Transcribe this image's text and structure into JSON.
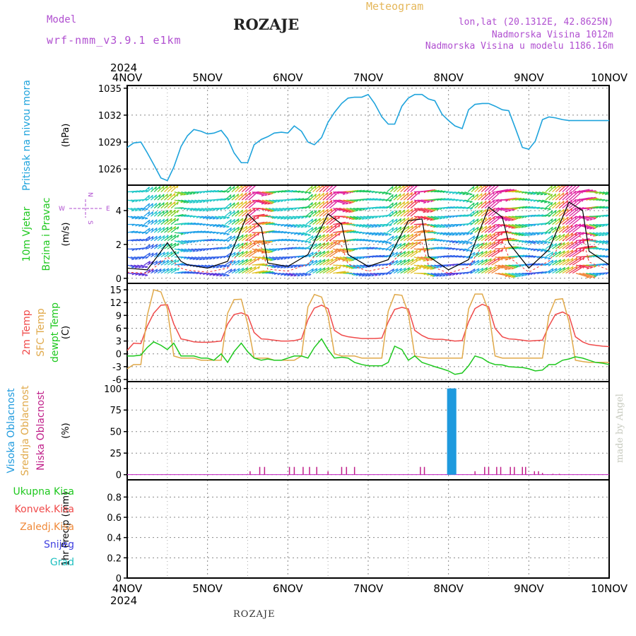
{
  "header": {
    "model_label": "Model",
    "model_name": "wrf-nmm_v3.9.1 e1km",
    "station": "ROZAJE",
    "meteogram_label": "Meteogram",
    "lonlat": "lon,lat (20.1312E, 42.8625N)",
    "elevation": "Nadmorska Visina 1012m",
    "model_elevation": "Nadmorska Visina u modelu 1186.16m"
  },
  "footer": {
    "station": "ROZAJE",
    "credit": "made by Angel"
  },
  "colors": {
    "pressure": "#1ea3dc",
    "temp2m": "#f04a4a",
    "sfc_temp": "#e0a94a",
    "dewpoint": "#1ec81e",
    "high_cloud": "#1e9ade",
    "mid_cloud": "#e0a94a",
    "low_cloud": "#c0208a",
    "total_precip": "#1ec81e",
    "conv_precip": "#f04a4a",
    "freezing_precip": "#f08a3a",
    "snow": "#4040e0",
    "hail": "#20c0c0"
  },
  "chart_data": [
    {
      "type": "line",
      "panel": "pressure",
      "time_labels": [
        "4NOV",
        "5NOV",
        "6NOV",
        "7NOV",
        "8NOV",
        "9NOV",
        "10NOV"
      ],
      "year_label": "2024",
      "ylabel": "(hPa)",
      "side_labels": [
        "Pritisak na nivou mora"
      ],
      "yticks": [
        1026,
        1029,
        1032,
        1035
      ],
      "ylim": [
        1024.2,
        1035.3
      ],
      "series": [
        {
          "color_key": "pressure",
          "x": [
            0,
            0.08,
            0.17,
            0.25,
            0.33,
            0.42,
            0.5,
            0.58,
            0.67,
            0.75,
            0.83,
            0.92,
            1.0,
            1.08,
            1.17,
            1.25,
            1.33,
            1.42,
            1.5,
            1.58,
            1.67,
            1.75,
            1.83,
            1.92,
            2.0,
            2.08,
            2.17,
            2.25,
            2.33,
            2.42,
            2.5,
            2.58,
            2.67,
            2.75,
            2.83,
            2.92,
            3.0,
            3.08,
            3.17,
            3.25,
            3.33,
            3.42,
            3.5,
            3.58,
            3.67,
            3.75,
            3.83,
            3.92,
            4.0,
            4.08,
            4.17,
            4.25,
            4.33,
            4.42,
            4.5,
            4.58,
            4.67,
            4.75,
            4.83,
            4.92,
            5.0,
            5.08,
            5.17,
            5.25,
            5.33,
            5.42,
            5.5,
            5.58,
            5.67,
            5.75,
            5.83,
            5.92,
            6.0
          ],
          "y": [
            1028.4,
            1028.9,
            1029.0,
            1027.8,
            1026.5,
            1025.0,
            1024.7,
            1026.2,
            1028.5,
            1029.7,
            1030.4,
            1030.2,
            1029.9,
            1030.0,
            1030.3,
            1029.4,
            1027.8,
            1026.7,
            1026.7,
            1028.7,
            1029.3,
            1029.6,
            1030.0,
            1030.1,
            1030.0,
            1030.8,
            1030.2,
            1029.0,
            1028.7,
            1029.5,
            1031.2,
            1032.3,
            1033.3,
            1033.9,
            1034.0,
            1034.0,
            1034.3,
            1033.3,
            1031.8,
            1031.0,
            1031.0,
            1033.0,
            1033.9,
            1034.3,
            1034.3,
            1033.8,
            1033.6,
            1032.1,
            1031.4,
            1030.8,
            1030.5,
            1032.6,
            1033.2,
            1033.3,
            1033.3,
            1033.0,
            1032.6,
            1032.5,
            1030.6,
            1028.4,
            1028.2,
            1029.1,
            1031.5,
            1031.8,
            1031.7,
            1031.5,
            1031.4,
            1031.4,
            1031.4,
            1031.4,
            1031.4,
            1031.4,
            1031.4
          ]
        }
      ]
    },
    {
      "type": "line",
      "panel": "wind",
      "ylabel": "(m/s)",
      "side_labels": [
        "10m Vjetar",
        "Brzina i Pravac"
      ],
      "compass": [
        "N",
        "W",
        "E",
        "S"
      ],
      "yticks": [
        0,
        2,
        4
      ],
      "ylim": [
        -0.3,
        5.5
      ],
      "series": [
        {
          "name": "wind_speed",
          "color_key": "line_black",
          "x": [
            0,
            0.25,
            0.5,
            0.67,
            0.75,
            1.0,
            1.25,
            1.5,
            1.67,
            1.75,
            2.0,
            2.25,
            2.5,
            2.67,
            2.75,
            3.0,
            3.25,
            3.5,
            3.67,
            3.75,
            4.0,
            4.25,
            4.5,
            4.67,
            4.75,
            5.0,
            5.25,
            5.5,
            5.67,
            5.75,
            6.0
          ],
          "y": [
            0.6,
            0.5,
            2.1,
            1.0,
            0.8,
            0.6,
            1.0,
            3.8,
            3.0,
            0.9,
            0.7,
            1.4,
            3.8,
            3.2,
            1.4,
            0.7,
            1.1,
            3.4,
            3.5,
            1.3,
            0.5,
            1.1,
            4.2,
            3.6,
            2.1,
            0.6,
            1.7,
            4.5,
            4.0,
            1.6,
            0.8
          ]
        }
      ]
    },
    {
      "type": "line",
      "panel": "temperature",
      "ylabel": "(C)",
      "side_labels": [
        "2m Temp",
        "SFC Temp",
        "dewpt Temp"
      ],
      "yticks": [
        -6,
        -3,
        0,
        3,
        6,
        9,
        12,
        15
      ],
      "ylim": [
        -6.5,
        16.5
      ],
      "x": [
        0,
        0.08,
        0.17,
        0.25,
        0.33,
        0.42,
        0.5,
        0.58,
        0.67,
        0.75,
        0.83,
        0.92,
        1.0,
        1.08,
        1.17,
        1.25,
        1.33,
        1.42,
        1.5,
        1.58,
        1.67,
        1.75,
        1.83,
        1.92,
        2.0,
        2.08,
        2.17,
        2.25,
        2.33,
        2.42,
        2.5,
        2.58,
        2.67,
        2.75,
        2.83,
        2.92,
        3.0,
        3.08,
        3.17,
        3.25,
        3.33,
        3.42,
        3.5,
        3.58,
        3.67,
        3.75,
        3.83,
        3.92,
        4.0,
        4.08,
        4.17,
        4.25,
        4.33,
        4.42,
        4.5,
        4.58,
        4.67,
        4.75,
        4.83,
        4.92,
        5.0,
        5.08,
        5.17,
        5.25,
        5.33,
        5.42,
        5.5,
        5.58,
        5.67,
        5.75,
        5.83,
        5.92,
        6.0
      ],
      "series": [
        {
          "name": "2m",
          "color_key": "temp2m",
          "y": [
            0.8,
            2.5,
            2.4,
            6.5,
            9.5,
            11.4,
            11.5,
            7.0,
            3.5,
            3.2,
            2.8,
            2.7,
            2.7,
            2.8,
            3.0,
            7.0,
            9.2,
            9.6,
            9.0,
            5.0,
            3.5,
            3.4,
            3.2,
            3.0,
            3.0,
            3.1,
            3.5,
            8.0,
            10.7,
            11.4,
            10.6,
            5.5,
            4.4,
            4.0,
            3.8,
            3.6,
            3.6,
            3.6,
            3.7,
            7.5,
            10.4,
            10.9,
            10.5,
            5.5,
            4.3,
            3.6,
            3.4,
            3.4,
            3.2,
            3.0,
            3.1,
            7.5,
            10.6,
            11.6,
            11.0,
            6.0,
            4.0,
            3.5,
            3.4,
            3.2,
            3.0,
            3.1,
            3.2,
            6.5,
            9.2,
            9.8,
            9.0,
            4.0,
            2.8,
            2.2,
            2.0,
            1.8,
            1.7
          ]
        },
        {
          "name": "sfc",
          "color_key": "sfc_temp",
          "y": [
            -3.5,
            -2.5,
            -2.5,
            9.0,
            15.0,
            14.5,
            10.5,
            -0.5,
            -1.0,
            -1.0,
            -1.0,
            -1.5,
            -1.5,
            -1.5,
            -1.5,
            9.5,
            12.7,
            12.8,
            7.0,
            -1.0,
            -1.0,
            -1.0,
            -1.5,
            -1.5,
            -1.5,
            -1.5,
            -0.5,
            11.0,
            13.9,
            13.3,
            9.0,
            0.0,
            -0.5,
            -0.5,
            -0.5,
            -1.0,
            -1.0,
            -1.0,
            -1.0,
            10.0,
            13.9,
            13.7,
            9.5,
            -0.5,
            -0.8,
            -1.0,
            -1.0,
            -1.0,
            -1.0,
            -1.0,
            -1.0,
            10.5,
            14.0,
            14.0,
            10.0,
            -0.5,
            -1.0,
            -1.0,
            -1.0,
            -1.0,
            -1.0,
            -1.0,
            -1.0,
            9.0,
            12.7,
            12.9,
            7.5,
            -1.5,
            -1.8,
            -2.0,
            -2.0,
            -2.0,
            -2.0
          ]
        },
        {
          "name": "dew",
          "color_key": "dewpoint",
          "y": [
            -0.5,
            -0.5,
            -0.3,
            1.5,
            2.8,
            2.0,
            1.0,
            2.5,
            -0.5,
            -0.5,
            -0.5,
            -1.0,
            -1.0,
            -1.5,
            0.0,
            -2.0,
            0.5,
            2.5,
            0.5,
            -1.0,
            -1.5,
            -1.2,
            -1.5,
            -1.5,
            -1.0,
            -0.5,
            -0.5,
            -1.0,
            1.5,
            3.5,
            1.0,
            -1.0,
            -0.8,
            -1.0,
            -2.0,
            -2.5,
            -2.8,
            -2.8,
            -2.8,
            -2.0,
            1.8,
            1.0,
            -1.5,
            -0.5,
            -2.0,
            -2.5,
            -3.0,
            -3.5,
            -4.0,
            -4.8,
            -4.5,
            -2.8,
            -0.5,
            -1.0,
            -2.0,
            -2.5,
            -2.6,
            -3.0,
            -3.1,
            -3.2,
            -3.5,
            -4.0,
            -3.8,
            -2.5,
            -2.5,
            -1.5,
            -1.2,
            -0.7,
            -1.0,
            -1.5,
            -2.0,
            -2.2,
            -2.5
          ]
        }
      ]
    },
    {
      "type": "bar",
      "panel": "cloud",
      "ylabel": "(%)",
      "side_labels": [
        "Visoka Oblacnost",
        "Srednja Oblacnost",
        "Niska Oblacnost"
      ],
      "yticks": [
        0,
        25,
        50,
        75,
        100
      ],
      "ylim": [
        -6,
        108
      ],
      "series": [
        {
          "name": "high",
          "color_key": "high_cloud",
          "x": [
            4.0,
            4.02,
            4.04,
            4.06,
            4.08
          ],
          "values": [
            100,
            100,
            100,
            100,
            100
          ]
        },
        {
          "name": "low",
          "color_key": "low_cloud",
          "x": [
            1.53,
            1.65,
            1.71,
            2.02,
            2.08,
            2.19,
            2.27,
            2.36,
            2.5,
            2.67,
            2.73,
            2.83,
            3.65,
            3.7,
            4.33,
            4.45,
            4.5,
            4.6,
            4.65,
            4.77,
            4.82,
            4.92,
            4.96,
            5.07,
            5.12,
            5.17,
            5.3,
            5.38
          ],
          "values": [
            4,
            9,
            9,
            9,
            9,
            9,
            9,
            9,
            4,
            9,
            9,
            9,
            9,
            9,
            4,
            9,
            9,
            9,
            9,
            9,
            9,
            9,
            9,
            4,
            4,
            2,
            1,
            1
          ]
        }
      ]
    },
    {
      "type": "bar",
      "panel": "precipitation",
      "ylabel": "1hr Precip (mm)",
      "side_labels": [
        "Ukupna  Kisa",
        "Konvek.Kisa",
        "Zaledj.Kisa",
        "Snijeg",
        "Grad"
      ],
      "yticks": [
        0,
        0.2,
        0.4,
        0.6,
        0.8
      ],
      "ylim": [
        0,
        0.97
      ],
      "series": []
    }
  ]
}
